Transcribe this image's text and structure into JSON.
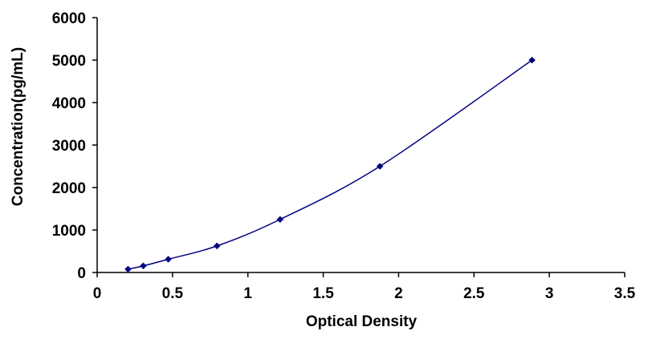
{
  "chart_data": {
    "type": "scatter",
    "title": "",
    "xlabel": "Optical Density",
    "ylabel": "Concentration(pg/mL)",
    "xlim": [
      0,
      3.5
    ],
    "ylim": [
      0,
      6000
    ],
    "x_ticks": [
      0,
      0.5,
      1,
      1.5,
      2,
      2.5,
      3,
      3.5
    ],
    "x_tick_labels": [
      "0",
      "0.5",
      "1",
      "1.5",
      "2",
      "2.5",
      "3",
      "3.5"
    ],
    "y_ticks": [
      0,
      1000,
      2000,
      3000,
      4000,
      5000,
      6000
    ],
    "y_tick_labels": [
      "0",
      "1000",
      "2000",
      "3000",
      "4000",
      "5000",
      "6000"
    ],
    "grid": false,
    "legend": false,
    "series": [
      {
        "marker": "diamond",
        "line": "smooth",
        "color": "#000080",
        "x": [
          0.205,
          0.306,
          0.472,
          0.795,
          1.214,
          1.876,
          2.885
        ],
        "y": [
          78,
          156,
          312,
          625,
          1250,
          2500,
          5000
        ]
      }
    ]
  }
}
